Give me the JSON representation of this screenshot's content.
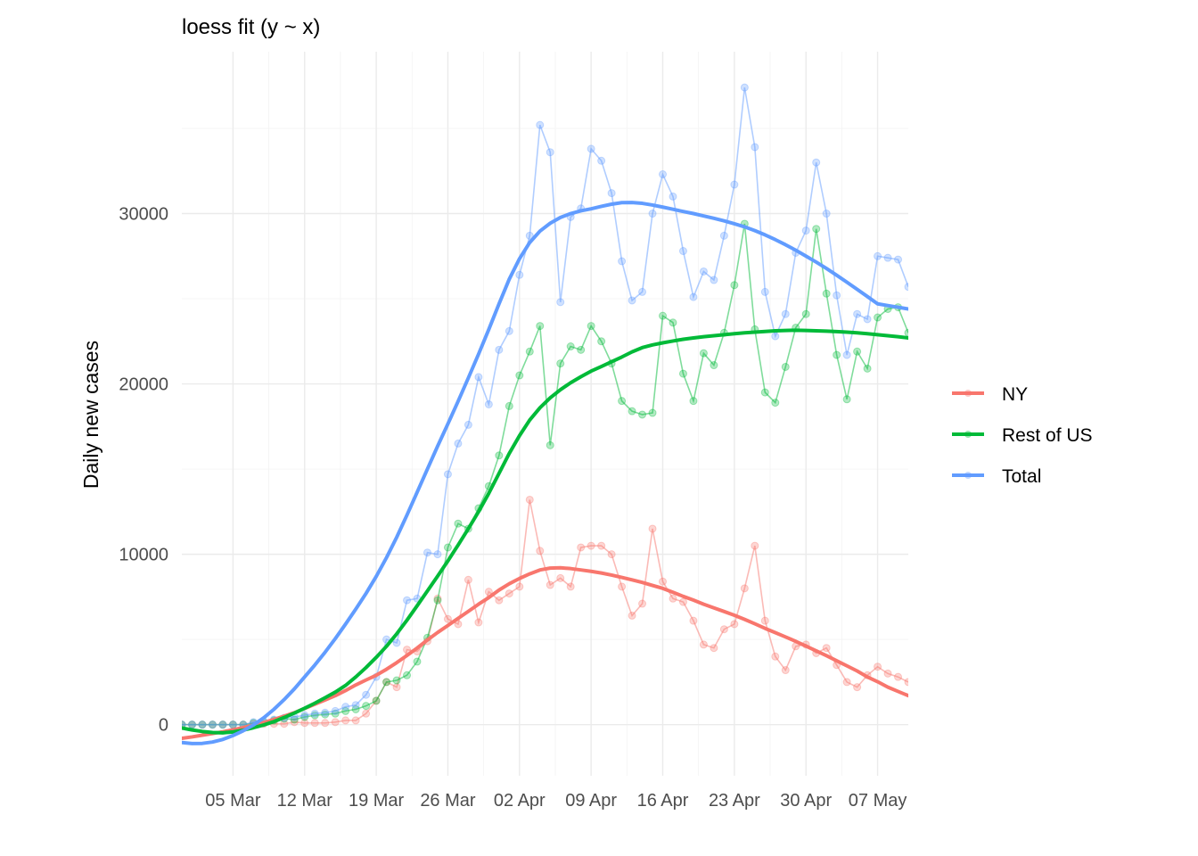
{
  "chart_data": {
    "type": "line",
    "title": "loess fit (y ~ x)",
    "xlabel": "",
    "ylabel": "Daily new cases",
    "x_start": "2020-02-29",
    "x_end": "2020-05-10",
    "x_tick_dates": [
      "2020-03-05",
      "2020-03-12",
      "2020-03-19",
      "2020-03-26",
      "2020-04-02",
      "2020-04-09",
      "2020-04-16",
      "2020-04-23",
      "2020-04-30",
      "2020-05-07"
    ],
    "x_tick_labels": [
      "05 Mar",
      "12 Mar",
      "19 Mar",
      "26 Mar",
      "02 Apr",
      "09 Apr",
      "16 Apr",
      "23 Apr",
      "30 Apr",
      "07 May"
    ],
    "ylim": [
      -3000,
      39500
    ],
    "y_ticks": [
      0,
      10000,
      20000,
      30000
    ],
    "y_tick_labels": [
      "0",
      "10000",
      "20000",
      "30000"
    ],
    "grid": true,
    "legend_position": "right",
    "series": [
      {
        "name": "NY",
        "color": "#F8766D",
        "dates": [
          "2020-02-29",
          "2020-03-01",
          "2020-03-02",
          "2020-03-03",
          "2020-03-04",
          "2020-03-05",
          "2020-03-06",
          "2020-03-07",
          "2020-03-08",
          "2020-03-09",
          "2020-03-10",
          "2020-03-11",
          "2020-03-12",
          "2020-03-13",
          "2020-03-14",
          "2020-03-15",
          "2020-03-16",
          "2020-03-17",
          "2020-03-18",
          "2020-03-19",
          "2020-03-20",
          "2020-03-21",
          "2020-03-22",
          "2020-03-23",
          "2020-03-24",
          "2020-03-25",
          "2020-03-26",
          "2020-03-27",
          "2020-03-28",
          "2020-03-29",
          "2020-03-30",
          "2020-03-31",
          "2020-04-01",
          "2020-04-02",
          "2020-04-03",
          "2020-04-04",
          "2020-04-05",
          "2020-04-06",
          "2020-04-07",
          "2020-04-08",
          "2020-04-09",
          "2020-04-10",
          "2020-04-11",
          "2020-04-12",
          "2020-04-13",
          "2020-04-14",
          "2020-04-15",
          "2020-04-16",
          "2020-04-17",
          "2020-04-18",
          "2020-04-19",
          "2020-04-20",
          "2020-04-21",
          "2020-04-22",
          "2020-04-23",
          "2020-04-24",
          "2020-04-25",
          "2020-04-26",
          "2020-04-27",
          "2020-04-28",
          "2020-04-29",
          "2020-04-30",
          "2020-05-01",
          "2020-05-02",
          "2020-05-03",
          "2020-05-04",
          "2020-05-05",
          "2020-05-06",
          "2020-05-07",
          "2020-05-08",
          "2020-05-09",
          "2020-05-10"
        ],
        "values": [
          0,
          0,
          0,
          0,
          0,
          0,
          0,
          50,
          50,
          50,
          50,
          150,
          100,
          100,
          100,
          150,
          250,
          250,
          650,
          1400,
          2500,
          2200,
          4400,
          4300,
          4900,
          7400,
          6200,
          5900,
          8500,
          6000,
          7800,
          7300,
          7700,
          8100,
          13200,
          10200,
          8200,
          8600,
          8100,
          10400,
          10500,
          10500,
          10000,
          8100,
          6400,
          7100,
          11500,
          8400,
          7400,
          7200,
          6100,
          4700,
          4500,
          5600,
          5900,
          8000,
          10500,
          6100,
          4000,
          3200,
          4600,
          4700,
          4200,
          4500,
          3500,
          2500,
          2200,
          2900,
          3400,
          3000,
          2800,
          2500
        ],
        "fit": [
          -800,
          -720,
          -620,
          -520,
          -420,
          -300,
          -170,
          -40,
          120,
          310,
          500,
          700,
          950,
          1200,
          1450,
          1700,
          2000,
          2330,
          2620,
          2900,
          3250,
          3640,
          4060,
          4500,
          4970,
          5410,
          5820,
          6240,
          6650,
          7070,
          7460,
          7900,
          8270,
          8580,
          8850,
          9080,
          9190,
          9210,
          9160,
          9080,
          9000,
          8900,
          8780,
          8640,
          8500,
          8350,
          8170,
          8000,
          7770,
          7530,
          7310,
          7070,
          6850,
          6640,
          6420,
          6180,
          5920,
          5650,
          5400,
          5150,
          4890,
          4610,
          4330,
          4050,
          3750,
          3450,
          3150,
          2800,
          2520,
          2200,
          1950,
          1700
        ]
      },
      {
        "name": "Rest of US",
        "color": "#00BA38",
        "dates": [
          "2020-02-29",
          "2020-03-01",
          "2020-03-02",
          "2020-03-03",
          "2020-03-04",
          "2020-03-05",
          "2020-03-06",
          "2020-03-07",
          "2020-03-08",
          "2020-03-09",
          "2020-03-10",
          "2020-03-11",
          "2020-03-12",
          "2020-03-13",
          "2020-03-14",
          "2020-03-15",
          "2020-03-16",
          "2020-03-17",
          "2020-03-18",
          "2020-03-19",
          "2020-03-20",
          "2020-03-21",
          "2020-03-22",
          "2020-03-23",
          "2020-03-24",
          "2020-03-25",
          "2020-03-26",
          "2020-03-27",
          "2020-03-28",
          "2020-03-29",
          "2020-03-30",
          "2020-03-31",
          "2020-04-01",
          "2020-04-02",
          "2020-04-03",
          "2020-04-04",
          "2020-04-05",
          "2020-04-06",
          "2020-04-07",
          "2020-04-08",
          "2020-04-09",
          "2020-04-10",
          "2020-04-11",
          "2020-04-12",
          "2020-04-13",
          "2020-04-14",
          "2020-04-15",
          "2020-04-16",
          "2020-04-17",
          "2020-04-18",
          "2020-04-19",
          "2020-04-20",
          "2020-04-21",
          "2020-04-22",
          "2020-04-23",
          "2020-04-24",
          "2020-04-25",
          "2020-04-26",
          "2020-04-27",
          "2020-04-28",
          "2020-04-29",
          "2020-04-30",
          "2020-05-01",
          "2020-05-02",
          "2020-05-03",
          "2020-05-04",
          "2020-05-05",
          "2020-05-06",
          "2020-05-07",
          "2020-05-08",
          "2020-05-09",
          "2020-05-10"
        ],
        "values": [
          0,
          0,
          0,
          0,
          0,
          0,
          0,
          100,
          150,
          250,
          350,
          300,
          450,
          550,
          600,
          650,
          800,
          900,
          1100,
          1400,
          2500,
          2600,
          2900,
          3700,
          5100,
          7300,
          10400,
          11800,
          11500,
          12700,
          14000,
          15800,
          18700,
          20500,
          21900,
          23400,
          16400,
          21200,
          22200,
          22000,
          23400,
          22500,
          21200,
          19000,
          18400,
          18200,
          18300,
          24000,
          23600,
          20600,
          19000,
          21800,
          21100,
          23000,
          25800,
          29400,
          23200,
          19500,
          18900,
          21000,
          23300,
          24100,
          29100,
          25300,
          21700,
          19100,
          21900,
          20900,
          23900,
          24400,
          24500,
          23000
        ],
        "fit": [
          -200,
          -310,
          -400,
          -460,
          -480,
          -430,
          -320,
          -180,
          -20,
          180,
          420,
          680,
          960,
          1260,
          1580,
          1910,
          2300,
          2800,
          3350,
          3950,
          4600,
          5330,
          6130,
          6980,
          7850,
          8720,
          9610,
          10540,
          11500,
          12500,
          13580,
          14750,
          15920,
          16960,
          17880,
          18600,
          19180,
          19660,
          20070,
          20420,
          20750,
          21020,
          21300,
          21580,
          21880,
          22130,
          22290,
          22410,
          22520,
          22620,
          22700,
          22770,
          22830,
          22890,
          22950,
          23000,
          23040,
          23080,
          23120,
          23140,
          23150,
          23140,
          23120,
          23100,
          23070,
          23040,
          23000,
          22950,
          22890,
          22830,
          22770,
          22700
        ]
      },
      {
        "name": "Total",
        "color": "#619CFF",
        "dates": [
          "2020-02-29",
          "2020-03-01",
          "2020-03-02",
          "2020-03-03",
          "2020-03-04",
          "2020-03-05",
          "2020-03-06",
          "2020-03-07",
          "2020-03-08",
          "2020-03-09",
          "2020-03-10",
          "2020-03-11",
          "2020-03-12",
          "2020-03-13",
          "2020-03-14",
          "2020-03-15",
          "2020-03-16",
          "2020-03-17",
          "2020-03-18",
          "2020-03-19",
          "2020-03-20",
          "2020-03-21",
          "2020-03-22",
          "2020-03-23",
          "2020-03-24",
          "2020-03-25",
          "2020-03-26",
          "2020-03-27",
          "2020-03-28",
          "2020-03-29",
          "2020-03-30",
          "2020-03-31",
          "2020-04-01",
          "2020-04-02",
          "2020-04-03",
          "2020-04-04",
          "2020-04-05",
          "2020-04-06",
          "2020-04-07",
          "2020-04-08",
          "2020-04-09",
          "2020-04-10",
          "2020-04-11",
          "2020-04-12",
          "2020-04-13",
          "2020-04-14",
          "2020-04-15",
          "2020-04-16",
          "2020-04-17",
          "2020-04-18",
          "2020-04-19",
          "2020-04-20",
          "2020-04-21",
          "2020-04-22",
          "2020-04-23",
          "2020-04-24",
          "2020-04-25",
          "2020-04-26",
          "2020-04-27",
          "2020-04-28",
          "2020-04-29",
          "2020-04-30",
          "2020-05-01",
          "2020-05-02",
          "2020-05-03",
          "2020-05-04",
          "2020-05-05",
          "2020-05-06",
          "2020-05-07",
          "2020-05-08",
          "2020-05-09",
          "2020-05-10"
        ],
        "values": [
          0,
          0,
          0,
          0,
          0,
          0,
          0,
          150,
          200,
          300,
          400,
          450,
          550,
          650,
          700,
          800,
          1050,
          1150,
          1750,
          2800,
          5000,
          4800,
          7300,
          7400,
          10100,
          10000,
          14700,
          16500,
          17600,
          20400,
          18800,
          22000,
          23100,
          26400,
          28700,
          35200,
          33600,
          24800,
          29800,
          30300,
          33800,
          33100,
          31200,
          27200,
          24900,
          25400,
          30000,
          32300,
          31000,
          27800,
          25100,
          26600,
          26100,
          28700,
          31700,
          37400,
          33900,
          25400,
          22800,
          24100,
          27700,
          29000,
          33000,
          30000,
          25200,
          21700,
          24100,
          23800,
          27500,
          27400,
          27300,
          25700
        ],
        "fit": [
          -1050,
          -1110,
          -1100,
          -1020,
          -870,
          -640,
          -360,
          -20,
          400,
          900,
          1470,
          2100,
          2800,
          3500,
          4250,
          5050,
          5900,
          6780,
          7700,
          8700,
          9800,
          11000,
          12300,
          13650,
          15000,
          16350,
          17650,
          18980,
          20350,
          21750,
          23200,
          24700,
          26150,
          27350,
          28300,
          28970,
          29430,
          29770,
          30000,
          30160,
          30280,
          30420,
          30550,
          30640,
          30650,
          30600,
          30500,
          30380,
          30250,
          30120,
          30000,
          29860,
          29720,
          29570,
          29400,
          29220,
          29000,
          28750,
          28470,
          28170,
          27850,
          27500,
          27150,
          26780,
          26380,
          25970,
          25550,
          25130,
          24700,
          24600,
          24500,
          24400
        ]
      }
    ]
  }
}
